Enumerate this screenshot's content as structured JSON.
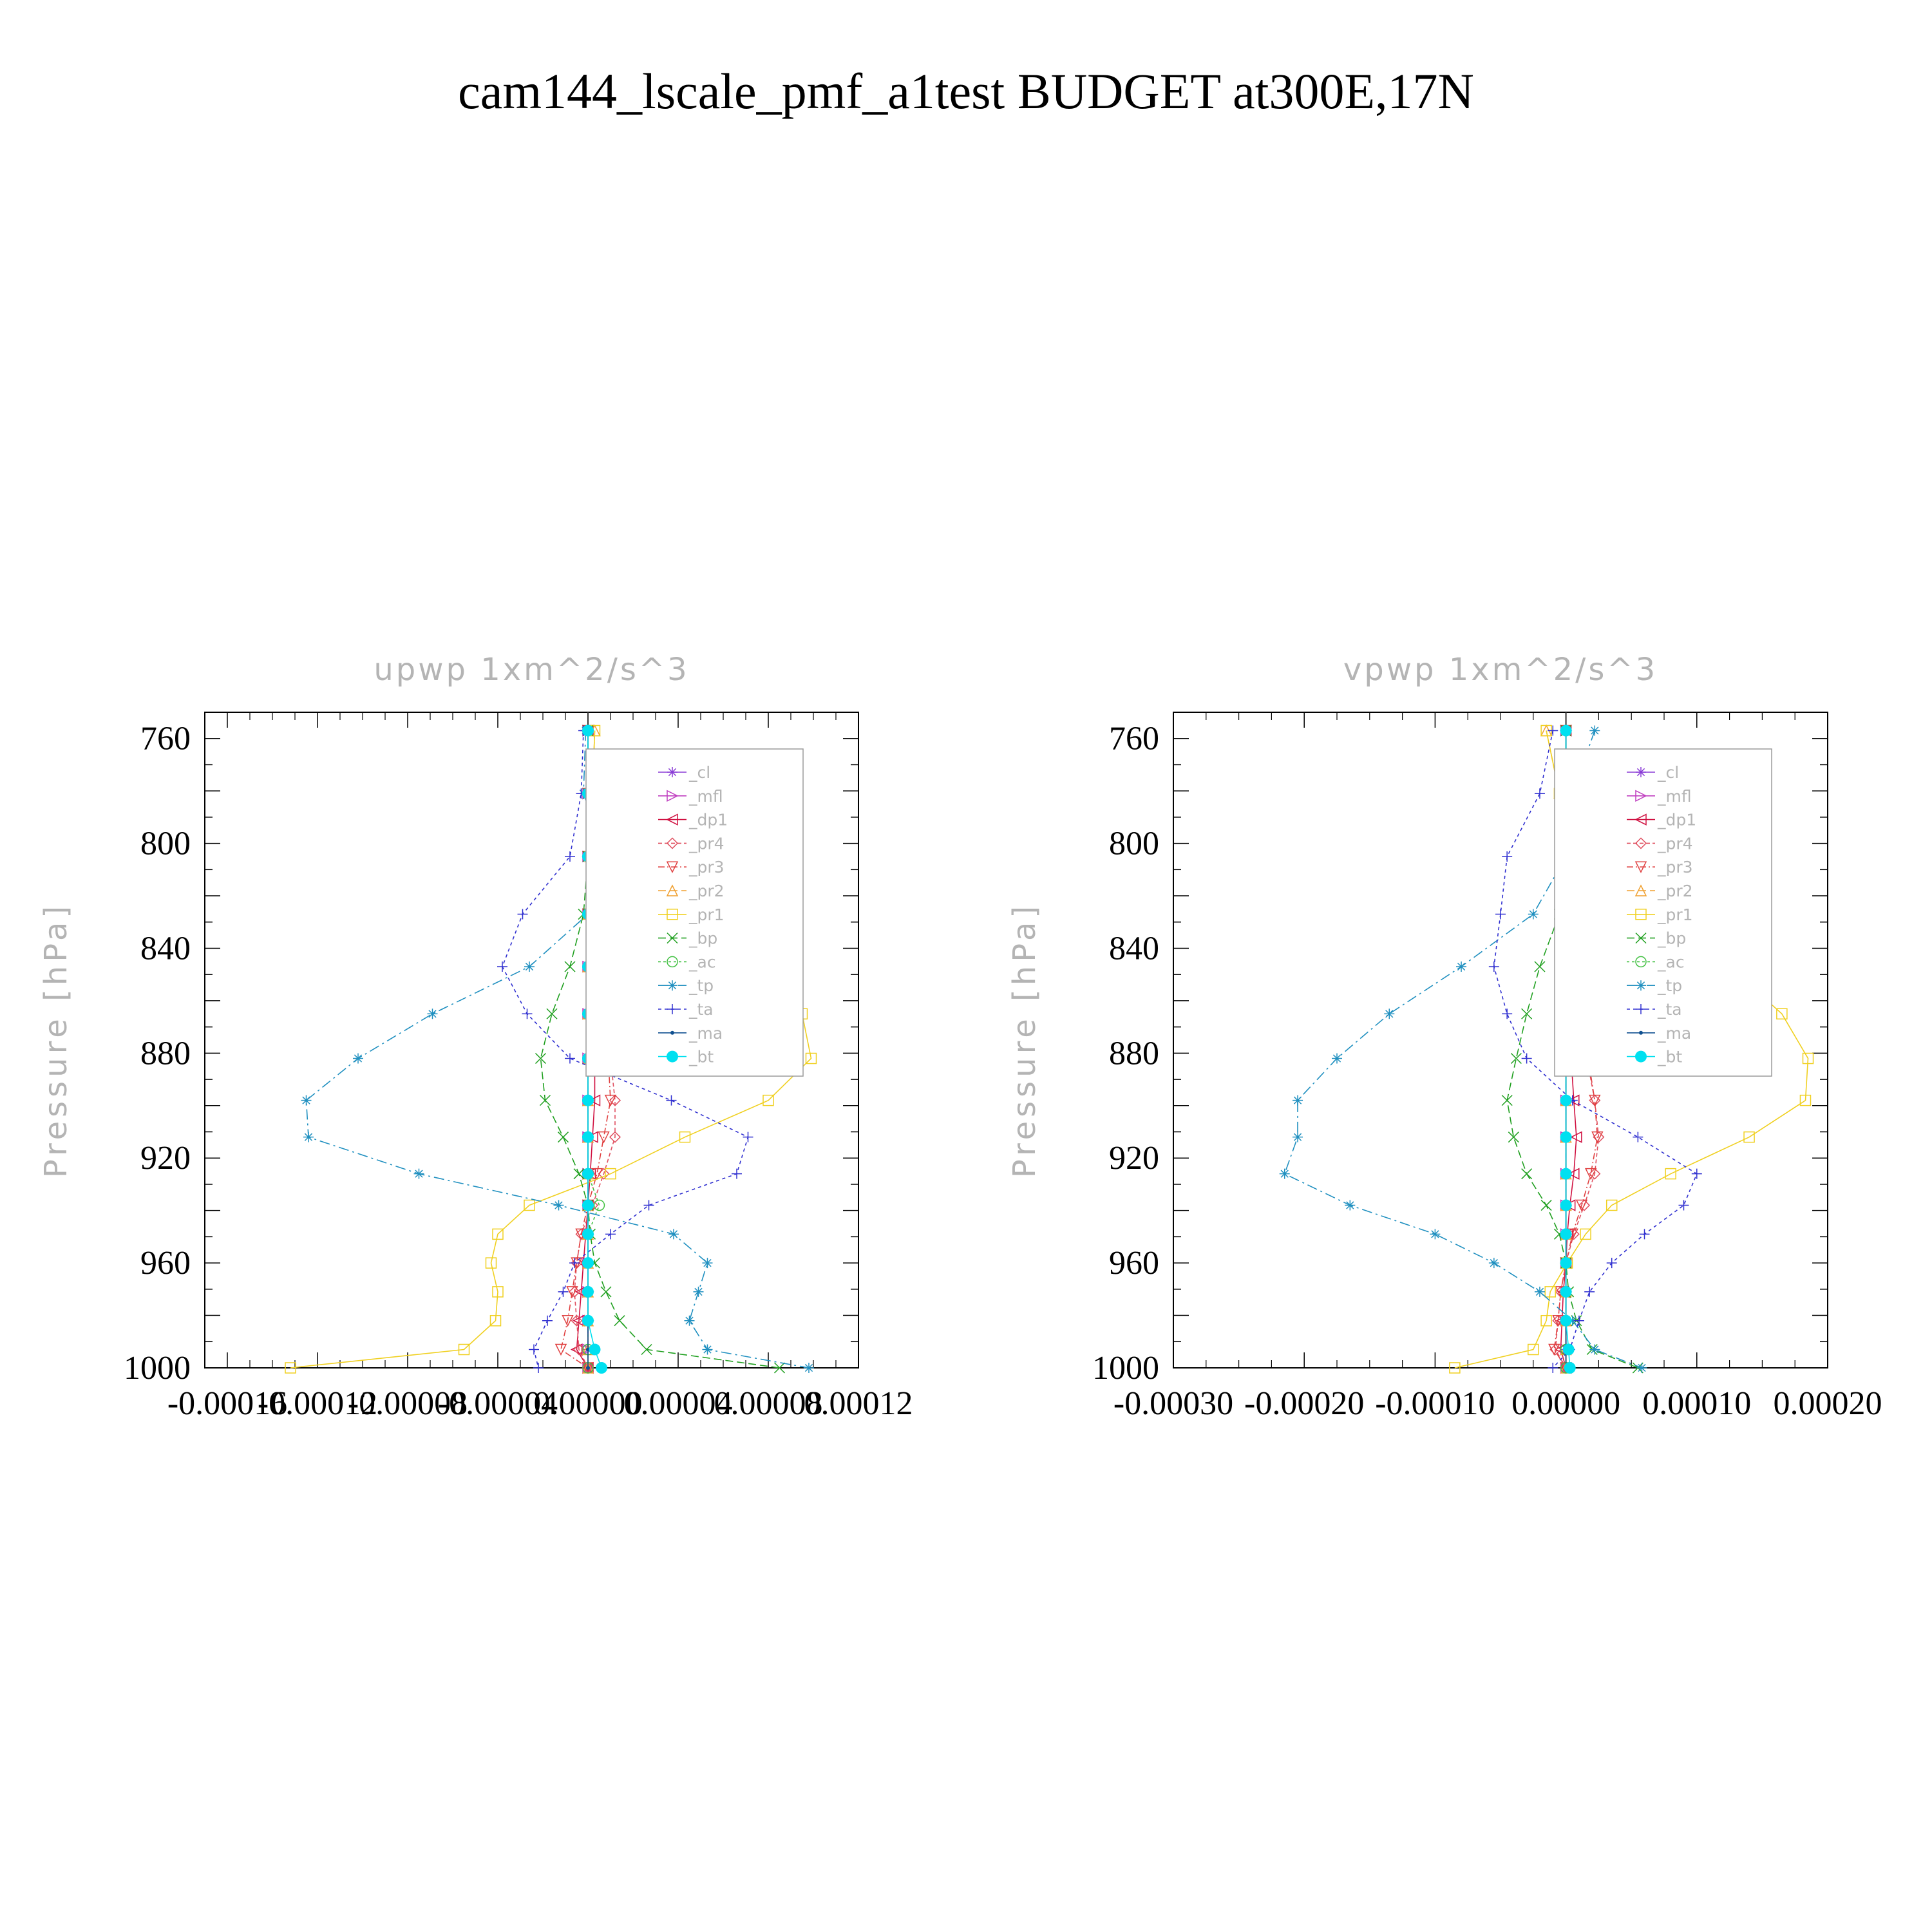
{
  "page_title": "cam144_lscale_pmf_a1test  BUDGET at300E,17N",
  "y_axis_label": "Pressure  [hPa]",
  "legend_entries": [
    "_cl",
    "_mfl",
    "_dp1",
    "_pr4",
    "_pr3",
    "_pr2",
    "_pr1",
    "_bp",
    "_ac",
    "_tp",
    "_ta",
    "_ma",
    "_bt"
  ],
  "colors": {
    "_cl": "#8a3cd6",
    "_mfl": "#c040c0",
    "_dp1": "#d01040",
    "_pr4": "#e05060",
    "_pr3": "#e04040",
    "_pr2": "#f0a030",
    "_pr1": "#f0d020",
    "_bp": "#20a020",
    "_ac": "#40c040",
    "_tp": "#2090c0",
    "_ta": "#3030d0",
    "_ma": "#105090",
    "_bt": "#00e0f0"
  },
  "chart_data": [
    {
      "type": "line",
      "title": "upwp   1xm^2/s^3",
      "ylabel": "Pressure  [hPa]",
      "ylim": [
        1000,
        750
      ],
      "xlim": [
        -0.00017,
        0.00012
      ],
      "yticks": [
        760,
        800,
        840,
        880,
        920,
        960,
        1000
      ],
      "xticks": [
        -0.00016,
        -0.00012,
        -8e-05,
        -4e-05,
        0.0,
        4e-05,
        8e-05,
        0.00012
      ],
      "xtick_labels": [
        "-0.00016",
        "-0.00012",
        "-0.00008",
        "-0.00004",
        "0.00000",
        "0.00004",
        "0.00008",
        "0.00012"
      ],
      "legend": "top-right",
      "levels": [
        757,
        781,
        805,
        827,
        847,
        865,
        882,
        898,
        912,
        926,
        938,
        949,
        960,
        971,
        982,
        993,
        1000
      ],
      "series": [
        {
          "name": "_cl",
          "values": [
            0,
            0,
            0,
            0,
            0,
            0,
            0,
            0,
            0,
            0,
            0,
            0,
            0,
            0,
            0,
            0,
            0
          ]
        },
        {
          "name": "_mfl",
          "values": [
            0,
            0,
            0,
            0,
            0,
            0,
            0,
            0,
            0,
            0,
            0,
            0,
            0,
            0,
            0,
            0,
            0
          ]
        },
        {
          "name": "_dp1",
          "values": [
            0,
            0,
            0,
            0,
            1e-06,
            2e-06,
            3e-06,
            3e-06,
            2e-06,
            1e-06,
            0,
            -1e-06,
            -2e-06,
            -3e-06,
            -4e-06,
            -5e-06,
            0
          ]
        },
        {
          "name": "_pr4",
          "values": [
            0,
            0,
            0,
            0,
            5e-06,
            8e-06,
            1e-05,
            1.2e-05,
            1.2e-05,
            7e-06,
            2e-06,
            -3e-06,
            -5e-06,
            -6e-06,
            -5e-06,
            -4e-06,
            0
          ]
        },
        {
          "name": "_pr3",
          "values": [
            0,
            0,
            0,
            0,
            4e-06,
            7e-06,
            9e-06,
            1e-05,
            7e-06,
            4e-06,
            0,
            -3e-06,
            -5e-06,
            -7e-06,
            -9e-06,
            -1.2e-05,
            0
          ]
        },
        {
          "name": "_pr2",
          "values": [
            3e-06,
            2e-06,
            1e-06,
            0,
            0,
            0,
            0,
            0,
            0,
            0,
            0,
            0,
            0,
            0,
            0,
            0,
            0
          ]
        },
        {
          "name": "_pr1",
          "values": [
            3e-06,
            2e-06,
            1e-06,
            3e-05,
            6.8e-05,
            9.5e-05,
            9.9e-05,
            8e-05,
            4.3e-05,
            1e-05,
            -2.6e-05,
            -4e-05,
            -4.3e-05,
            -4e-05,
            -4.1e-05,
            -5.5e-05,
            -0.000132
          ]
        },
        {
          "name": "_bp",
          "values": [
            0,
            0,
            0,
            -2e-06,
            -8e-06,
            -1.6e-05,
            -2.1e-05,
            -1.9e-05,
            -1.1e-05,
            -4e-06,
            0,
            1e-06,
            3e-06,
            8e-06,
            1.4e-05,
            2.6e-05,
            8.5e-05
          ]
        },
        {
          "name": "_ac",
          "values": [
            0,
            0,
            0,
            0,
            0,
            0,
            0,
            0,
            0,
            0,
            5e-06,
            0,
            0,
            0,
            0,
            0,
            0
          ]
        },
        {
          "name": "_tp",
          "values": [
            -1e-06,
            -2e-06,
            8e-06,
            0,
            -2.6e-05,
            -6.9e-05,
            -0.000102,
            -0.000125,
            -0.000124,
            -7.5e-05,
            -1.3e-05,
            3.8e-05,
            5.3e-05,
            4.9e-05,
            4.5e-05,
            5.3e-05,
            9.8e-05
          ]
        },
        {
          "name": "_ta",
          "values": [
            -2e-06,
            -3e-06,
            -8e-06,
            -2.9e-05,
            -3.8e-05,
            -2.7e-05,
            -8e-06,
            3.7e-05,
            7.1e-05,
            6.6e-05,
            2.7e-05,
            1e-05,
            -6e-06,
            -1.1e-05,
            -1.8e-05,
            -2.4e-05,
            -2.2e-05
          ]
        },
        {
          "name": "_ma",
          "values": [
            0,
            0,
            0,
            0,
            0,
            0,
            0,
            0,
            0,
            0,
            0,
            0,
            0,
            0,
            0,
            0,
            0
          ]
        },
        {
          "name": "_bt",
          "values": [
            0,
            0,
            0,
            0,
            0,
            0,
            0,
            0,
            0,
            0,
            0,
            0,
            0,
            0,
            0,
            3e-06,
            6e-06
          ]
        }
      ]
    },
    {
      "type": "line",
      "title": "vpwp   1xm^2/s^3",
      "ylabel": "Pressure  [hPa]",
      "ylim": [
        1000,
        750
      ],
      "xlim": [
        -0.0003,
        0.0002
      ],
      "yticks": [
        760,
        800,
        840,
        880,
        920,
        960,
        1000
      ],
      "xticks": [
        -0.0003,
        -0.0002,
        -0.0001,
        0.0,
        0.0001,
        0.0002
      ],
      "xtick_labels": [
        "-0.00030",
        "-0.00020",
        "-0.00010",
        "0.00000",
        "0.00010",
        "0.00020"
      ],
      "legend": "top-right",
      "levels": [
        757,
        781,
        805,
        827,
        847,
        865,
        882,
        898,
        912,
        926,
        938,
        949,
        960,
        971,
        982,
        993,
        1000
      ],
      "series": [
        {
          "name": "_cl",
          "values": [
            0,
            0,
            0,
            0,
            0,
            0,
            0,
            0,
            0,
            0,
            0,
            0,
            0,
            0,
            0,
            0,
            0
          ]
        },
        {
          "name": "_mfl",
          "values": [
            0,
            0,
            0,
            0,
            0,
            0,
            0,
            0,
            0,
            0,
            0,
            0,
            0,
            0,
            0,
            0,
            0
          ]
        },
        {
          "name": "_dp1",
          "values": [
            0,
            0,
            0,
            0,
            2e-06,
            3e-06,
            4e-06,
            6e-06,
            8e-06,
            6e-06,
            3e-06,
            1e-06,
            0,
            -2e-06,
            -3e-06,
            -4e-06,
            0
          ]
        },
        {
          "name": "_pr4",
          "values": [
            0,
            0,
            0,
            0,
            8e-06,
            1.2e-05,
            1.6e-05,
            2.2e-05,
            2.5e-05,
            2.2e-05,
            1.4e-05,
            6e-06,
            0,
            -4e-06,
            -6e-06,
            -8e-06,
            0
          ]
        },
        {
          "name": "_pr3",
          "values": [
            0,
            0,
            0,
            0,
            8e-06,
            1.2e-05,
            1.7e-05,
            2.2e-05,
            2.4e-05,
            1.9e-05,
            1.2e-05,
            5e-06,
            0,
            -4e-06,
            -6e-06,
            -9e-06,
            0
          ]
        },
        {
          "name": "_pr2",
          "values": [
            -1.5e-05,
            -5e-06,
            0,
            0,
            0,
            0,
            0,
            0,
            0,
            0,
            0,
            0,
            0,
            0,
            0,
            0,
            0
          ]
        },
        {
          "name": "_pr1",
          "values": [
            -1.5e-05,
            -5e-06,
            2.5e-05,
            7.5e-05,
            0.000125,
            0.000165,
            0.000185,
            0.000183,
            0.00014,
            8e-05,
            3.5e-05,
            1.5e-05,
            1e-06,
            -1.2e-05,
            -1.5e-05,
            -2.5e-05,
            -8.5e-05
          ]
        },
        {
          "name": "_bp",
          "values": [
            0,
            0,
            -2e-06,
            -5e-06,
            -2e-05,
            -3e-05,
            -3.8e-05,
            -4.5e-05,
            -4e-05,
            -3e-05,
            -1.5e-05,
            -5e-06,
            0,
            2e-06,
            8e-06,
            2e-05,
            5.5e-05
          ]
        },
        {
          "name": "_ac",
          "values": [
            0,
            0,
            0,
            0,
            0,
            0,
            0,
            0,
            0,
            0,
            0,
            0,
            0,
            0,
            0,
            0,
            0
          ]
        },
        {
          "name": "_tp",
          "values": [
            2.2e-05,
            5e-06,
            0,
            -2.5e-05,
            -8e-05,
            -0.000135,
            -0.000175,
            -0.000205,
            -0.000205,
            -0.000215,
            -0.000165,
            -0.0001,
            -5.5e-05,
            -2e-05,
            5e-06,
            2.2e-05,
            5.8e-05
          ]
        },
        {
          "name": "_ta",
          "values": [
            -1e-05,
            -2e-05,
            -4.5e-05,
            -5e-05,
            -5.5e-05,
            -4.5e-05,
            -3e-05,
            5e-06,
            5.5e-05,
            0.0001,
            9e-05,
            6e-05,
            3.5e-05,
            1.8e-05,
            1e-05,
            3e-06,
            -1e-05
          ]
        },
        {
          "name": "_ma",
          "values": [
            0,
            0,
            0,
            0,
            0,
            0,
            0,
            0,
            0,
            0,
            0,
            0,
            0,
            0,
            0,
            0,
            0
          ]
        },
        {
          "name": "_bt",
          "values": [
            0,
            0,
            0,
            0,
            0,
            0,
            0,
            0,
            0,
            0,
            0,
            0,
            0,
            0,
            0,
            2e-06,
            3e-06
          ]
        }
      ]
    }
  ]
}
